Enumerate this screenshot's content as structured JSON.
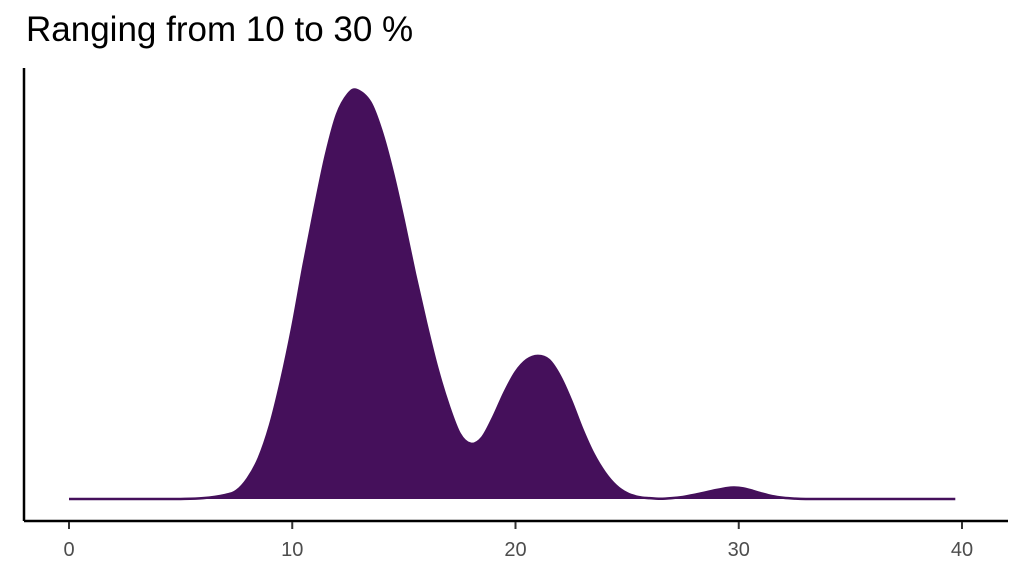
{
  "chart_data": {
    "type": "area",
    "title": "Ranging from 10 to 30 %",
    "xlabel": "",
    "ylabel": "",
    "xlim": [
      -2,
      41.5
    ],
    "ylim": [
      0,
      1
    ],
    "x_ticks": [
      "0",
      "10",
      "20",
      "30",
      "40"
    ],
    "x_tick_values": [
      0,
      10,
      20,
      30,
      40
    ],
    "y_ticks": [],
    "grid": false,
    "fill_color": "#45105B",
    "series": [
      {
        "x": [
          0,
          1,
          2,
          3,
          4,
          5,
          6,
          7,
          7.5,
          8,
          8.5,
          9,
          9.5,
          10,
          10.5,
          11,
          11.5,
          12,
          12.5,
          12.9,
          13.5,
          14,
          14.5,
          15,
          15.5,
          16,
          16.5,
          17,
          17.5,
          18,
          18.5,
          19,
          19.5,
          20,
          20.5,
          21,
          21.5,
          22,
          22.5,
          23,
          23.5,
          24,
          24.5,
          25,
          25.5,
          26,
          26.5,
          27,
          27.5,
          28,
          28.5,
          29,
          29.5,
          29.8,
          30.2,
          30.5,
          31,
          31.5,
          32,
          32.5,
          33,
          34,
          35,
          36,
          37,
          38,
          39,
          39.7
        ],
        "y": [
          0,
          0,
          0,
          0,
          0,
          0,
          0.002,
          0.01,
          0.02,
          0.05,
          0.1,
          0.18,
          0.29,
          0.42,
          0.57,
          0.71,
          0.84,
          0.94,
          0.99,
          1.0,
          0.97,
          0.9,
          0.8,
          0.68,
          0.55,
          0.43,
          0.32,
          0.23,
          0.16,
          0.135,
          0.15,
          0.2,
          0.26,
          0.31,
          0.34,
          0.35,
          0.34,
          0.3,
          0.24,
          0.17,
          0.11,
          0.065,
          0.033,
          0.014,
          0.005,
          0.002,
          0.0005,
          0.002,
          0.005,
          0.01,
          0.016,
          0.022,
          0.027,
          0.028,
          0.026,
          0.022,
          0.014,
          0.007,
          0.003,
          0.001,
          0,
          0,
          0,
          0,
          0,
          0,
          0,
          0
        ]
      }
    ]
  }
}
